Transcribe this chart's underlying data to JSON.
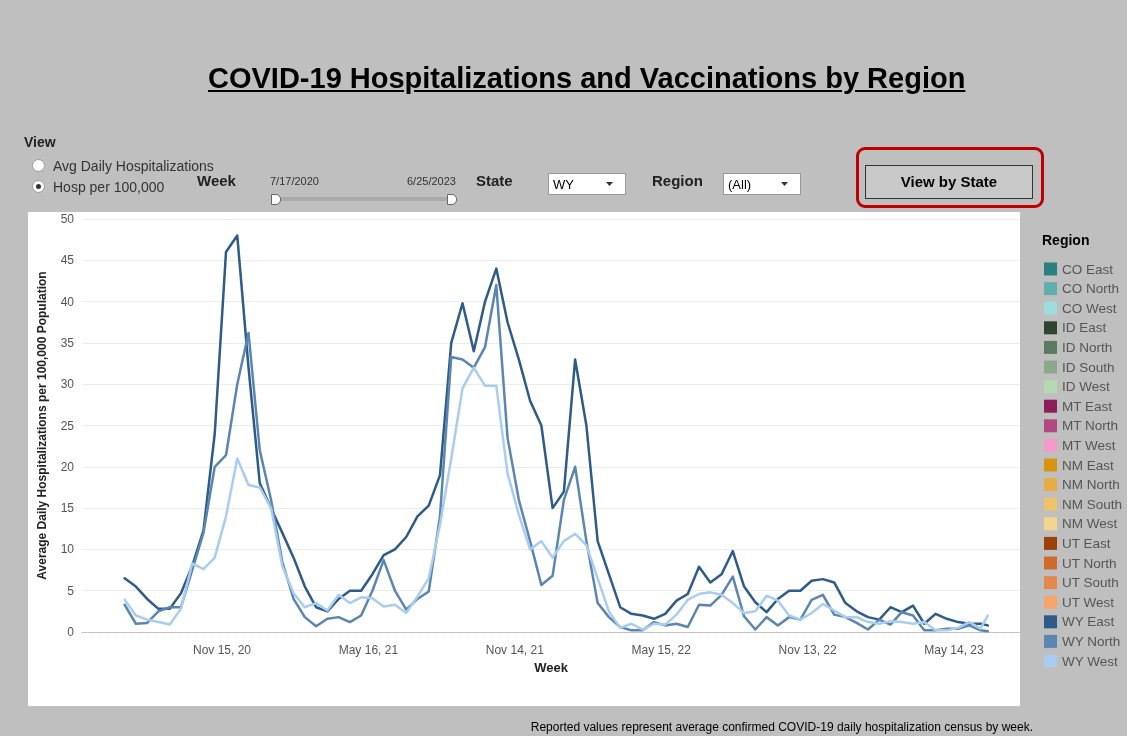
{
  "chart_data": {
    "type": "line",
    "title": "COVID-19 Hospitalizations and Vaccinations by Region",
    "xlabel": "Week",
    "ylabel": "Average Daily Hospitalizations per 100,000 Population",
    "legend_title": "Region",
    "annotations": [
      "View",
      "Avg Daily Hospitalizations",
      "Hosp per 100,000",
      "Week",
      "7/17/2020",
      "6/25/2023",
      "State",
      "WY",
      "Region",
      "(All)",
      "View by State",
      "Reported values represent average confirmed COVID-19 daily hospitalization census by week."
    ],
    "x": [
      "2020-07-17",
      "2020-07-31",
      "2020-08-14",
      "2020-08-28",
      "2020-09-11",
      "2020-09-25",
      "2020-10-09",
      "2020-10-23",
      "2020-11-06",
      "2020-11-20",
      "2020-12-04",
      "2020-12-18",
      "2021-01-01",
      "2021-01-15",
      "2021-01-29",
      "2021-02-12",
      "2021-02-26",
      "2021-03-12",
      "2021-03-26",
      "2021-04-09",
      "2021-04-23",
      "2021-05-07",
      "2021-05-21",
      "2021-06-04",
      "2021-06-18",
      "2021-07-02",
      "2021-07-16",
      "2021-07-30",
      "2021-08-13",
      "2021-08-27",
      "2021-09-10",
      "2021-09-24",
      "2021-10-08",
      "2021-10-22",
      "2021-11-05",
      "2021-11-19",
      "2021-12-03",
      "2021-12-17",
      "2021-12-31",
      "2022-01-14",
      "2022-01-28",
      "2022-02-11",
      "2022-02-25",
      "2022-03-11",
      "2022-03-25",
      "2022-04-08",
      "2022-04-22",
      "2022-05-06",
      "2022-05-20",
      "2022-06-03",
      "2022-06-17",
      "2022-07-01",
      "2022-07-15",
      "2022-07-29",
      "2022-08-12",
      "2022-08-26",
      "2022-09-09",
      "2022-09-23",
      "2022-10-07",
      "2022-10-21",
      "2022-11-04",
      "2022-11-18",
      "2022-12-02",
      "2022-12-16",
      "2022-12-30",
      "2023-01-13",
      "2023-01-27",
      "2023-02-10",
      "2023-02-24",
      "2023-03-10",
      "2023-03-24",
      "2023-04-07",
      "2023-04-21",
      "2023-05-05",
      "2023-05-19",
      "2023-06-02",
      "2023-06-16",
      "2023-06-25"
    ],
    "series": [
      {
        "name": "CO East",
        "color": "#2a7f7f",
        "values": [
          null,
          null,
          null,
          null,
          null,
          null,
          null,
          null,
          null,
          null,
          null,
          null,
          null,
          null,
          null,
          null,
          null,
          null,
          null,
          null,
          null,
          null,
          null,
          null,
          null,
          null,
          null,
          null,
          null,
          null,
          null,
          null,
          null,
          null,
          null,
          null,
          null,
          null,
          null,
          null,
          null,
          null,
          null,
          null,
          null,
          null,
          null,
          null,
          null,
          null,
          null,
          null,
          null,
          null,
          null,
          null,
          null,
          null,
          null,
          null,
          null,
          null,
          null,
          null,
          null,
          null,
          null,
          null,
          null,
          null,
          null,
          null,
          null,
          null,
          null,
          null,
          null,
          null
        ]
      },
      {
        "name": "CO North",
        "color": "#5fb0ad",
        "values": [
          null,
          null,
          null,
          null,
          null,
          null,
          null,
          null,
          null,
          null,
          null,
          null,
          null,
          null,
          null,
          null,
          null,
          null,
          null,
          null,
          null,
          null,
          null,
          null,
          null,
          null,
          null,
          null,
          null,
          null,
          null,
          null,
          null,
          null,
          null,
          null,
          null,
          null,
          null,
          null,
          null,
          null,
          null,
          null,
          null,
          null,
          null,
          null,
          null,
          null,
          null,
          null,
          null,
          null,
          null,
          null,
          null,
          null,
          null,
          null,
          null,
          null,
          null,
          null,
          null,
          null,
          null,
          null,
          null,
          null,
          null,
          null,
          null,
          null,
          null,
          null,
          null,
          null
        ]
      },
      {
        "name": "CO West",
        "color": "#9fdcdc",
        "values": [
          null,
          null,
          null,
          null,
          null,
          null,
          null,
          null,
          null,
          null,
          null,
          null,
          null,
          null,
          null,
          null,
          null,
          null,
          null,
          null,
          null,
          null,
          null,
          null,
          null,
          null,
          null,
          null,
          null,
          null,
          null,
          null,
          null,
          null,
          null,
          null,
          null,
          null,
          null,
          null,
          null,
          null,
          null,
          null,
          null,
          null,
          null,
          null,
          null,
          null,
          null,
          null,
          null,
          null,
          null,
          null,
          null,
          null,
          null,
          null,
          null,
          null,
          null,
          null,
          null,
          null,
          null,
          null,
          null,
          null,
          null,
          null,
          null,
          null,
          null,
          null,
          null,
          null
        ]
      },
      {
        "name": "ID East",
        "color": "#2f4532",
        "values": [
          null,
          null,
          null,
          null,
          null,
          null,
          null,
          null,
          null,
          null,
          null,
          null,
          null,
          null,
          null,
          null,
          null,
          null,
          null,
          null,
          null,
          null,
          null,
          null,
          null,
          null,
          null,
          null,
          null,
          null,
          null,
          null,
          null,
          null,
          null,
          null,
          null,
          null,
          null,
          null,
          null,
          null,
          null,
          null,
          null,
          null,
          null,
          null,
          null,
          null,
          null,
          null,
          null,
          null,
          null,
          null,
          null,
          null,
          null,
          null,
          null,
          null,
          null,
          null,
          null,
          null,
          null,
          null,
          null,
          null,
          null,
          null,
          null,
          null,
          null,
          null,
          null,
          null
        ]
      },
      {
        "name": "ID North",
        "color": "#5b7a5e",
        "values": [
          null,
          null,
          null,
          null,
          null,
          null,
          null,
          null,
          null,
          null,
          null,
          null,
          null,
          null,
          null,
          null,
          null,
          null,
          null,
          null,
          null,
          null,
          null,
          null,
          null,
          null,
          null,
          null,
          null,
          null,
          null,
          null,
          null,
          null,
          null,
          null,
          null,
          null,
          null,
          null,
          null,
          null,
          null,
          null,
          null,
          null,
          null,
          null,
          null,
          null,
          null,
          null,
          null,
          null,
          null,
          null,
          null,
          null,
          null,
          null,
          null,
          null,
          null,
          null,
          null,
          null,
          null,
          null,
          null,
          null,
          null,
          null,
          null,
          null,
          null,
          null,
          null,
          null
        ]
      },
      {
        "name": "ID South",
        "color": "#8aa88a",
        "values": [
          null,
          null,
          null,
          null,
          null,
          null,
          null,
          null,
          null,
          null,
          null,
          null,
          null,
          null,
          null,
          null,
          null,
          null,
          null,
          null,
          null,
          null,
          null,
          null,
          null,
          null,
          null,
          null,
          null,
          null,
          null,
          null,
          null,
          null,
          null,
          null,
          null,
          null,
          null,
          null,
          null,
          null,
          null,
          null,
          null,
          null,
          null,
          null,
          null,
          null,
          null,
          null,
          null,
          null,
          null,
          null,
          null,
          null,
          null,
          null,
          null,
          null,
          null,
          null,
          null,
          null,
          null,
          null,
          null,
          null,
          null,
          null,
          null,
          null,
          null,
          null,
          null,
          null
        ]
      },
      {
        "name": "ID West",
        "color": "#b5d9b0",
        "values": [
          null,
          null,
          null,
          null,
          null,
          null,
          null,
          null,
          null,
          null,
          null,
          null,
          null,
          null,
          null,
          null,
          null,
          null,
          null,
          null,
          null,
          null,
          null,
          null,
          null,
          null,
          null,
          null,
          null,
          null,
          null,
          null,
          null,
          null,
          null,
          null,
          null,
          null,
          null,
          null,
          null,
          null,
          null,
          null,
          null,
          null,
          null,
          null,
          null,
          null,
          null,
          null,
          null,
          null,
          null,
          null,
          null,
          null,
          null,
          null,
          null,
          null,
          null,
          null,
          null,
          null,
          null,
          null,
          null,
          null,
          null,
          null,
          null,
          null,
          null,
          null,
          null,
          null
        ]
      },
      {
        "name": "MT East",
        "color": "#8b1f5a",
        "values": [
          null,
          null,
          null,
          null,
          null,
          null,
          null,
          null,
          null,
          null,
          null,
          null,
          null,
          null,
          null,
          null,
          null,
          null,
          null,
          null,
          null,
          null,
          null,
          null,
          null,
          null,
          null,
          null,
          null,
          null,
          null,
          null,
          null,
          null,
          null,
          null,
          null,
          null,
          null,
          null,
          null,
          null,
          null,
          null,
          null,
          null,
          null,
          null,
          null,
          null,
          null,
          null,
          null,
          null,
          null,
          null,
          null,
          null,
          null,
          null,
          null,
          null,
          null,
          null,
          null,
          null,
          null,
          null,
          null,
          null,
          null,
          null,
          null,
          null,
          null,
          null,
          null,
          null
        ]
      },
      {
        "name": "MT North",
        "color": "#b04a80",
        "values": [
          null,
          null,
          null,
          null,
          null,
          null,
          null,
          null,
          null,
          null,
          null,
          null,
          null,
          null,
          null,
          null,
          null,
          null,
          null,
          null,
          null,
          null,
          null,
          null,
          null,
          null,
          null,
          null,
          null,
          null,
          null,
          null,
          null,
          null,
          null,
          null,
          null,
          null,
          null,
          null,
          null,
          null,
          null,
          null,
          null,
          null,
          null,
          null,
          null,
          null,
          null,
          null,
          null,
          null,
          null,
          null,
          null,
          null,
          null,
          null,
          null,
          null,
          null,
          null,
          null,
          null,
          null,
          null,
          null,
          null,
          null,
          null,
          null,
          null,
          null,
          null,
          null,
          null
        ]
      },
      {
        "name": "MT West",
        "color": "#f49ac8",
        "values": [
          null,
          null,
          null,
          null,
          null,
          null,
          null,
          null,
          null,
          null,
          null,
          null,
          null,
          null,
          null,
          null,
          null,
          null,
          null,
          null,
          null,
          null,
          null,
          null,
          null,
          null,
          null,
          null,
          null,
          null,
          null,
          null,
          null,
          null,
          null,
          null,
          null,
          null,
          null,
          null,
          null,
          null,
          null,
          null,
          null,
          null,
          null,
          null,
          null,
          null,
          null,
          null,
          null,
          null,
          null,
          null,
          null,
          null,
          null,
          null,
          null,
          null,
          null,
          null,
          null,
          null,
          null,
          null,
          null,
          null,
          null,
          null,
          null,
          null,
          null,
          null,
          null,
          null
        ]
      },
      {
        "name": "NM East",
        "color": "#d8930f",
        "values": [
          null,
          null,
          null,
          null,
          null,
          null,
          null,
          null,
          null,
          null,
          null,
          null,
          null,
          null,
          null,
          null,
          null,
          null,
          null,
          null,
          null,
          null,
          null,
          null,
          null,
          null,
          null,
          null,
          null,
          null,
          null,
          null,
          null,
          null,
          null,
          null,
          null,
          null,
          null,
          null,
          null,
          null,
          null,
          null,
          null,
          null,
          null,
          null,
          null,
          null,
          null,
          null,
          null,
          null,
          null,
          null,
          null,
          null,
          null,
          null,
          null,
          null,
          null,
          null,
          null,
          null,
          null,
          null,
          null,
          null,
          null,
          null,
          null,
          null,
          null,
          null,
          null,
          null
        ]
      },
      {
        "name": "NM North",
        "color": "#e6ad45",
        "values": [
          null,
          null,
          null,
          null,
          null,
          null,
          null,
          null,
          null,
          null,
          null,
          null,
          null,
          null,
          null,
          null,
          null,
          null,
          null,
          null,
          null,
          null,
          null,
          null,
          null,
          null,
          null,
          null,
          null,
          null,
          null,
          null,
          null,
          null,
          null,
          null,
          null,
          null,
          null,
          null,
          null,
          null,
          null,
          null,
          null,
          null,
          null,
          null,
          null,
          null,
          null,
          null,
          null,
          null,
          null,
          null,
          null,
          null,
          null,
          null,
          null,
          null,
          null,
          null,
          null,
          null,
          null,
          null,
          null,
          null,
          null,
          null,
          null,
          null,
          null,
          null,
          null,
          null
        ]
      },
      {
        "name": "NM South",
        "color": "#eec46a",
        "values": [
          null,
          null,
          null,
          null,
          null,
          null,
          null,
          null,
          null,
          null,
          null,
          null,
          null,
          null,
          null,
          null,
          null,
          null,
          null,
          null,
          null,
          null,
          null,
          null,
          null,
          null,
          null,
          null,
          null,
          null,
          null,
          null,
          null,
          null,
          null,
          null,
          null,
          null,
          null,
          null,
          null,
          null,
          null,
          null,
          null,
          null,
          null,
          null,
          null,
          null,
          null,
          null,
          null,
          null,
          null,
          null,
          null,
          null,
          null,
          null,
          null,
          null,
          null,
          null,
          null,
          null,
          null,
          null,
          null,
          null,
          null,
          null,
          null,
          null,
          null,
          null,
          null,
          null
        ]
      },
      {
        "name": "NM West",
        "color": "#f5d48f",
        "values": [
          null,
          null,
          null,
          null,
          null,
          null,
          null,
          null,
          null,
          null,
          null,
          null,
          null,
          null,
          null,
          null,
          null,
          null,
          null,
          null,
          null,
          null,
          null,
          null,
          null,
          null,
          null,
          null,
          null,
          null,
          null,
          null,
          null,
          null,
          null,
          null,
          null,
          null,
          null,
          null,
          null,
          null,
          null,
          null,
          null,
          null,
          null,
          null,
          null,
          null,
          null,
          null,
          null,
          null,
          null,
          null,
          null,
          null,
          null,
          null,
          null,
          null,
          null,
          null,
          null,
          null,
          null,
          null,
          null,
          null,
          null,
          null,
          null,
          null,
          null,
          null,
          null,
          null
        ]
      },
      {
        "name": "UT East",
        "color": "#9e3f08",
        "values": [
          null,
          null,
          null,
          null,
          null,
          null,
          null,
          null,
          null,
          null,
          null,
          null,
          null,
          null,
          null,
          null,
          null,
          null,
          null,
          null,
          null,
          null,
          null,
          null,
          null,
          null,
          null,
          null,
          null,
          null,
          null,
          null,
          null,
          null,
          null,
          null,
          null,
          null,
          null,
          null,
          null,
          null,
          null,
          null,
          null,
          null,
          null,
          null,
          null,
          null,
          null,
          null,
          null,
          null,
          null,
          null,
          null,
          null,
          null,
          null,
          null,
          null,
          null,
          null,
          null,
          null,
          null,
          null,
          null,
          null,
          null,
          null,
          null,
          null,
          null,
          null,
          null,
          null
        ]
      },
      {
        "name": "UT North",
        "color": "#d06a2c",
        "values": [
          null,
          null,
          null,
          null,
          null,
          null,
          null,
          null,
          null,
          null,
          null,
          null,
          null,
          null,
          null,
          null,
          null,
          null,
          null,
          null,
          null,
          null,
          null,
          null,
          null,
          null,
          null,
          null,
          null,
          null,
          null,
          null,
          null,
          null,
          null,
          null,
          null,
          null,
          null,
          null,
          null,
          null,
          null,
          null,
          null,
          null,
          null,
          null,
          null,
          null,
          null,
          null,
          null,
          null,
          null,
          null,
          null,
          null,
          null,
          null,
          null,
          null,
          null,
          null,
          null,
          null,
          null,
          null,
          null,
          null,
          null,
          null,
          null,
          null,
          null,
          null,
          null,
          null
        ]
      },
      {
        "name": "UT South",
        "color": "#e58850",
        "values": [
          null,
          null,
          null,
          null,
          null,
          null,
          null,
          null,
          null,
          null,
          null,
          null,
          null,
          null,
          null,
          null,
          null,
          null,
          null,
          null,
          null,
          null,
          null,
          null,
          null,
          null,
          null,
          null,
          null,
          null,
          null,
          null,
          null,
          null,
          null,
          null,
          null,
          null,
          null,
          null,
          null,
          null,
          null,
          null,
          null,
          null,
          null,
          null,
          null,
          null,
          null,
          null,
          null,
          null,
          null,
          null,
          null,
          null,
          null,
          null,
          null,
          null,
          null,
          null,
          null,
          null,
          null,
          null,
          null,
          null,
          null,
          null,
          null,
          null,
          null,
          null,
          null,
          null
        ]
      },
      {
        "name": "UT West",
        "color": "#f7a56c",
        "values": [
          null,
          null,
          null,
          null,
          null,
          null,
          null,
          null,
          null,
          null,
          null,
          null,
          null,
          null,
          null,
          null,
          null,
          null,
          null,
          null,
          null,
          null,
          null,
          null,
          null,
          null,
          null,
          null,
          null,
          null,
          null,
          null,
          null,
          null,
          null,
          null,
          null,
          null,
          null,
          null,
          null,
          null,
          null,
          null,
          null,
          null,
          null,
          null,
          null,
          null,
          null,
          null,
          null,
          null,
          null,
          null,
          null,
          null,
          null,
          null,
          null,
          null,
          null,
          null,
          null,
          null,
          null,
          null,
          null,
          null,
          null,
          null,
          null,
          null,
          null,
          null,
          null,
          null
        ]
      },
      {
        "name": "WY East",
        "color": "#2e5b88",
        "values": [
          6.5,
          5.5,
          4,
          2.8,
          2.8,
          4.7,
          8,
          12.3,
          24,
          46,
          48,
          32,
          18,
          15,
          12,
          9,
          5.5,
          3,
          2.5,
          4,
          5,
          5,
          7,
          9.3,
          10,
          11.5,
          14,
          15.3,
          19,
          35,
          39.8,
          34,
          40,
          44,
          37.5,
          33,
          28,
          25,
          15,
          17,
          33,
          25,
          11,
          7,
          3,
          2.2,
          2,
          1.6,
          2.2,
          3.8,
          4.6,
          7.9,
          6,
          7,
          9.8,
          5.5,
          3.6,
          2.4,
          4,
          5,
          5,
          6.2,
          6.4,
          6,
          3.5,
          2.5,
          1.8,
          1.5,
          3,
          2.4,
          3.2,
          1,
          2.2,
          1.6,
          1.2,
          1,
          1,
          0.8
        ]
      },
      {
        "name": "WY North",
        "color": "#5b86b0",
        "values": [
          3.3,
          1,
          1.1,
          2.5,
          3,
          3,
          7.5,
          12,
          20,
          21.4,
          30,
          36.2,
          22,
          16,
          8.5,
          4,
          1.8,
          0.7,
          1.6,
          1.8,
          1.2,
          2,
          5,
          8.7,
          5,
          2.7,
          4,
          4.9,
          14,
          33.3,
          33,
          32,
          34.5,
          42,
          23.5,
          16,
          11,
          5.7,
          6.8,
          16,
          20,
          11,
          3.5,
          1.8,
          0.6,
          0.2,
          0.2,
          1.2,
          0.8,
          1,
          0.6,
          3.3,
          3.2,
          4.5,
          6.7,
          1.9,
          0.3,
          1.8,
          0.8,
          1.8,
          1.5,
          3.9,
          4.5,
          2.1,
          1.8,
          1.1,
          0.3,
          1.5,
          0.9,
          2.4,
          2,
          0.2,
          0.2,
          0.4,
          0.4,
          0.8,
          0.2,
          0.1
        ]
      },
      {
        "name": "WY West",
        "color": "#a9cdef",
        "values": [
          3.9,
          2,
          1.5,
          1.2,
          0.9,
          2.8,
          8.3,
          7.6,
          9,
          14,
          21,
          17.8,
          17.5,
          15,
          8,
          4.7,
          3,
          3.5,
          2.6,
          4.5,
          3.5,
          4.2,
          4.1,
          3.1,
          3.3,
          2.3,
          4.3,
          6.5,
          13,
          21,
          29.5,
          32,
          29.8,
          29.8,
          19.2,
          14.2,
          10,
          11,
          9,
          11,
          11.9,
          10.5,
          6.5,
          2.5,
          0.5,
          1,
          0.3,
          1,
          0.9,
          2.1,
          3.9,
          4.6,
          4.8,
          4.5,
          3.5,
          2.3,
          2.5,
          4.4,
          3.8,
          2,
          1.5,
          2.3,
          3.4,
          2.6,
          1.8,
          1.8,
          1.2,
          1,
          1.3,
          1.2,
          1,
          1.2,
          0.2,
          0.2,
          0.5,
          1.2,
          0.4,
          2
        ]
      }
    ],
    "xlim": [
      "2020-05-25",
      "2023-08-04"
    ],
    "xticks": [
      {
        "value": "2020-11-15",
        "label": "Nov 15, 20"
      },
      {
        "value": "2021-05-16",
        "label": "May 16, 21"
      },
      {
        "value": "2021-11-14",
        "label": "Nov 14, 21"
      },
      {
        "value": "2022-05-15",
        "label": "May 15, 22"
      },
      {
        "value": "2022-11-13",
        "label": "Nov 13, 22"
      },
      {
        "value": "2023-05-14",
        "label": "May 14, 23"
      }
    ],
    "ylim": [
      0,
      50
    ],
    "yticks": [
      0,
      5,
      10,
      15,
      20,
      25,
      30,
      35,
      40,
      45,
      50
    ],
    "grid": "y",
    "legend": "right",
    "marker": "none",
    "line_style": "solid"
  }
}
